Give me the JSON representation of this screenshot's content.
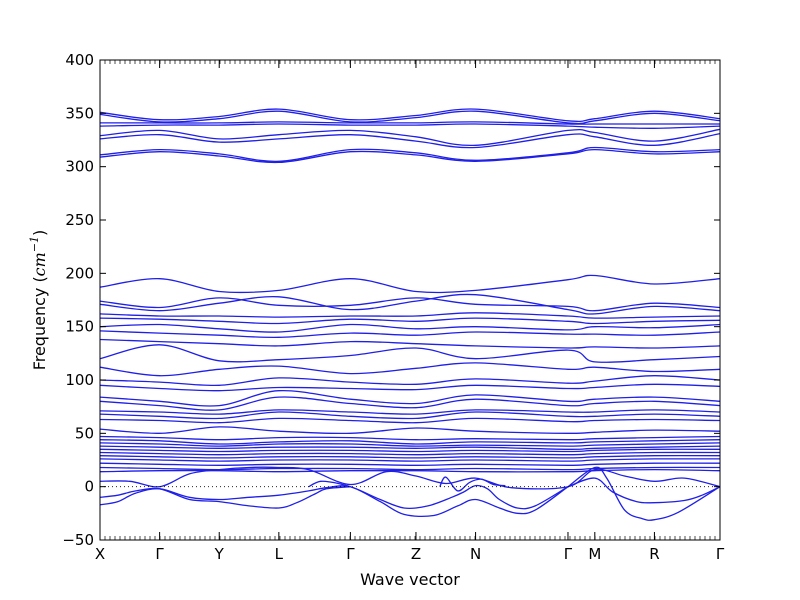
{
  "chart_data": {
    "type": "line",
    "title": "",
    "xlabel": "Wave vector",
    "ylabel": {
      "prefix": "Frequency (",
      "var": "cm",
      "exp": "−1",
      "suffix": ")"
    },
    "ylim": [
      -50,
      400
    ],
    "yticks": [
      -50,
      0,
      50,
      100,
      150,
      200,
      250,
      300,
      350,
      400
    ],
    "ytick_labels": [
      "−50",
      "0",
      "50",
      "100",
      "150",
      "200",
      "250",
      "300",
      "350",
      "400"
    ],
    "xlim": [
      0,
      10.4
    ],
    "high_symmetry_points": [
      {
        "label": "X",
        "x": 0
      },
      {
        "label": "Γ",
        "x": 1
      },
      {
        "label": "Y",
        "x": 2
      },
      {
        "label": "L",
        "x": 3
      },
      {
        "label": "Γ",
        "x": 4.2
      },
      {
        "label": "Z",
        "x": 5.3
      },
      {
        "label": "N",
        "x": 6.3
      },
      {
        "label": "Γ",
        "x": 7.85
      },
      {
        "label": "M",
        "x": 8.3
      },
      {
        "label": "R",
        "x": 9.3
      },
      {
        "label": "Γ",
        "x": 10.4
      }
    ],
    "zero_line": true,
    "line_color": "#1f1fe8",
    "series": [
      {
        "x": [
          0,
          1,
          2,
          3,
          4.2,
          5.3,
          6.3,
          7.85,
          8.3,
          9.3,
          10.4
        ],
        "y": [
          351,
          344,
          347,
          354,
          344,
          348,
          354,
          343,
          345,
          352,
          345
        ]
      },
      {
        "x": [
          0,
          1,
          2,
          3,
          4.2,
          5.3,
          6.3,
          7.85,
          8.3,
          9.3,
          10.4
        ],
        "y": [
          349,
          342,
          345,
          352,
          342,
          346,
          352,
          341,
          343,
          350,
          343
        ]
      },
      {
        "x": [
          0,
          1,
          2,
          3,
          4.2,
          5.3,
          6.3,
          7.85,
          8.3,
          9.3,
          10.4
        ],
        "y": [
          341,
          341,
          341,
          342,
          341,
          341,
          342,
          340,
          340,
          340,
          340
        ]
      },
      {
        "x": [
          0,
          1,
          2,
          3,
          4.2,
          5.3,
          6.3,
          7.85,
          8.3,
          9.3,
          10.4
        ],
        "y": [
          338,
          339,
          339,
          340,
          339,
          339,
          340,
          338,
          337,
          336,
          338
        ]
      },
      {
        "x": [
          0,
          1,
          2,
          3,
          4.2,
          5.3,
          6.3,
          7.85,
          8.3,
          9.3,
          10.4
        ],
        "y": [
          329,
          334,
          326,
          330,
          334,
          328,
          320,
          334,
          332,
          324,
          335
        ]
      },
      {
        "x": [
          0,
          1,
          2,
          3,
          4.2,
          5.3,
          6.3,
          7.85,
          8.3,
          9.3,
          10.4
        ],
        "y": [
          326,
          330,
          323,
          326,
          330,
          324,
          318,
          330,
          328,
          320,
          331
        ]
      },
      {
        "x": [
          0,
          1,
          2,
          3,
          4.2,
          5.3,
          6.3,
          7.85,
          8.3,
          9.3,
          10.4
        ],
        "y": [
          311,
          316,
          312,
          305,
          316,
          313,
          306,
          313,
          318,
          314,
          316
        ]
      },
      {
        "x": [
          0,
          1,
          2,
          3,
          4.2,
          5.3,
          6.3,
          7.85,
          8.3,
          9.3,
          10.4
        ],
        "y": [
          309,
          314,
          310,
          304,
          314,
          311,
          305,
          312,
          316,
          312,
          314
        ]
      },
      {
        "x": [
          0,
          1,
          2,
          3,
          4.2,
          5.3,
          6.3,
          7.85,
          8.3,
          9.3,
          10.4
        ],
        "y": [
          187,
          195,
          183,
          184,
          195,
          183,
          184,
          194,
          198,
          190,
          195
        ]
      },
      {
        "x": [
          0,
          1,
          2,
          3,
          4.2,
          5.3,
          6.3,
          7.85,
          8.3,
          9.3,
          10.4
        ],
        "y": [
          174,
          168,
          177,
          170,
          170,
          177,
          171,
          169,
          165,
          172,
          168
        ]
      },
      {
        "x": [
          0,
          1,
          2,
          3,
          4.2,
          5.3,
          6.3,
          7.85,
          8.3,
          9.3,
          10.4
        ],
        "y": [
          171,
          165,
          172,
          178,
          166,
          174,
          180,
          166,
          162,
          169,
          165
        ]
      },
      {
        "x": [
          0,
          1,
          2,
          3,
          4.2,
          5.3,
          6.3,
          7.85,
          8.3,
          9.3,
          10.4
        ],
        "y": [
          162,
          160,
          160,
          159,
          160,
          160,
          163,
          160,
          158,
          159,
          160
        ]
      },
      {
        "x": [
          0,
          1,
          2,
          3,
          4.2,
          5.3,
          6.3,
          7.85,
          8.3,
          9.3,
          10.4
        ],
        "y": [
          158,
          157,
          155,
          153,
          157,
          155,
          158,
          155,
          153,
          155,
          156
        ]
      },
      {
        "x": [
          0,
          1,
          2,
          3,
          4.2,
          5.3,
          6.3,
          7.85,
          8.3,
          9.3,
          10.4
        ],
        "y": [
          150,
          152,
          148,
          145,
          152,
          148,
          150,
          147,
          150,
          149,
          152
        ]
      },
      {
        "x": [
          0,
          1,
          2,
          3,
          4.2,
          5.3,
          6.3,
          7.85,
          8.3,
          9.3,
          10.4
        ],
        "y": [
          146,
          144,
          142,
          140,
          144,
          142,
          145,
          143,
          143,
          142,
          145
        ]
      },
      {
        "x": [
          0,
          1,
          2,
          3,
          4.2,
          5.3,
          6.3,
          7.85,
          8.3,
          9.3,
          10.4
        ],
        "y": [
          138,
          136,
          134,
          132,
          136,
          134,
          132,
          130,
          131,
          130,
          132
        ]
      },
      {
        "x": [
          0,
          1,
          2,
          3,
          4.2,
          5.3,
          6.3,
          7.85,
          8.3,
          9.3,
          10.4
        ],
        "y": [
          120,
          133,
          118,
          119,
          123,
          130,
          120,
          128,
          117,
          119,
          122
        ]
      },
      {
        "x": [
          0,
          1,
          2,
          3,
          4.2,
          5.3,
          6.3,
          7.85,
          8.3,
          9.3,
          10.4
        ],
        "y": [
          112,
          104,
          110,
          113,
          106,
          111,
          116,
          110,
          112,
          108,
          110
        ]
      },
      {
        "x": [
          0,
          1,
          2,
          3,
          4.2,
          5.3,
          6.3,
          7.85,
          8.3,
          9.3,
          10.4
        ],
        "y": [
          100,
          98,
          95,
          102,
          98,
          96,
          101,
          97,
          99,
          104,
          100
        ]
      },
      {
        "x": [
          0,
          1,
          2,
          3,
          4.2,
          5.3,
          6.3,
          7.85,
          8.3,
          9.3,
          10.4
        ],
        "y": [
          95,
          92,
          90,
          93,
          92,
          91,
          95,
          92,
          93,
          96,
          94
        ]
      },
      {
        "x": [
          0,
          1,
          2,
          3,
          4.2,
          5.3,
          6.3,
          7.85,
          8.3,
          9.3,
          10.4
        ],
        "y": [
          84,
          80,
          76,
          90,
          82,
          78,
          86,
          80,
          82,
          84,
          80
        ]
      },
      {
        "x": [
          0,
          1,
          2,
          3,
          4.2,
          5.3,
          6.3,
          7.85,
          8.3,
          9.3,
          10.4
        ],
        "y": [
          80,
          76,
          72,
          84,
          78,
          74,
          82,
          76,
          78,
          80,
          76
        ]
      },
      {
        "x": [
          0,
          1,
          2,
          3,
          4.2,
          5.3,
          6.3,
          7.85,
          8.3,
          9.3,
          10.4
        ],
        "y": [
          71,
          70,
          68,
          72,
          70,
          68,
          72,
          70,
          70,
          72,
          70
        ]
      },
      {
        "x": [
          0,
          1,
          2,
          3,
          4.2,
          5.3,
          6.3,
          7.85,
          8.3,
          9.3,
          10.4
        ],
        "y": [
          68,
          66,
          64,
          70,
          66,
          64,
          70,
          66,
          66,
          68,
          66
        ]
      },
      {
        "x": [
          0,
          1,
          2,
          3,
          4.2,
          5.3,
          6.3,
          7.85,
          8.3,
          9.3,
          10.4
        ],
        "y": [
          63,
          62,
          60,
          64,
          62,
          60,
          64,
          61,
          62,
          63,
          62
        ]
      },
      {
        "x": [
          0,
          1,
          2,
          3,
          4.2,
          5.3,
          6.3,
          7.85,
          8.3,
          9.3,
          10.4
        ],
        "y": [
          54,
          50,
          56,
          52,
          50,
          55,
          52,
          50,
          51,
          53,
          52
        ]
      },
      {
        "x": [
          0,
          1,
          2,
          3,
          4.2,
          5.3,
          6.3,
          7.85,
          8.3,
          9.3,
          10.4
        ],
        "y": [
          47,
          46,
          44,
          46,
          46,
          44,
          45,
          44,
          45,
          46,
          47
        ]
      },
      {
        "x": [
          0,
          1,
          2,
          3,
          4.2,
          5.3,
          6.3,
          7.85,
          8.3,
          9.3,
          10.4
        ],
        "y": [
          44,
          43,
          40,
          42,
          43,
          40,
          42,
          41,
          42,
          43,
          44
        ]
      },
      {
        "x": [
          0,
          1,
          2,
          3,
          4.2,
          5.3,
          6.3,
          7.85,
          8.3,
          9.3,
          10.4
        ],
        "y": [
          41,
          40,
          38,
          40,
          40,
          38,
          39,
          38,
          39,
          40,
          41
        ]
      },
      {
        "x": [
          0,
          1,
          2,
          3,
          4.2,
          5.3,
          6.3,
          7.85,
          8.3,
          9.3,
          10.4
        ],
        "y": [
          38,
          37,
          36,
          37,
          37,
          36,
          37,
          35,
          36,
          37,
          38
        ]
      },
      {
        "x": [
          0,
          1,
          2,
          3,
          4.2,
          5.3,
          6.3,
          7.85,
          8.3,
          9.3,
          10.4
        ],
        "y": [
          35,
          34,
          33,
          34,
          34,
          33,
          34,
          33,
          34,
          35,
          35
        ]
      },
      {
        "x": [
          0,
          1,
          2,
          3,
          4.2,
          5.3,
          6.3,
          7.85,
          8.3,
          9.3,
          10.4
        ],
        "y": [
          32,
          31,
          30,
          31,
          31,
          30,
          31,
          30,
          31,
          32,
          32
        ]
      },
      {
        "x": [
          0,
          1,
          2,
          3,
          4.2,
          5.3,
          6.3,
          7.85,
          8.3,
          9.3,
          10.4
        ],
        "y": [
          29,
          28,
          27,
          28,
          28,
          27,
          28,
          27,
          28,
          29,
          29
        ]
      },
      {
        "x": [
          0,
          1,
          2,
          3,
          4.2,
          5.3,
          6.3,
          7.85,
          8.3,
          9.3,
          10.4
        ],
        "y": [
          26,
          25,
          24,
          25,
          25,
          24,
          25,
          24,
          25,
          26,
          26
        ]
      },
      {
        "x": [
          0,
          1,
          2,
          3,
          4.2,
          5.3,
          6.3,
          7.85,
          8.3,
          9.3,
          10.4
        ],
        "y": [
          22,
          21,
          20,
          21,
          21,
          20,
          21,
          20,
          21,
          22,
          22
        ]
      },
      {
        "x": [
          0,
          1,
          2,
          3,
          4.2,
          5.3,
          6.3,
          7.85,
          8.3,
          9.3,
          10.4
        ],
        "y": [
          18,
          17,
          16,
          17,
          17,
          16,
          17,
          16,
          17,
          18,
          18
        ]
      },
      {
        "x": [
          0,
          1,
          2,
          3,
          4.2,
          5.3,
          6.3,
          7.85,
          8.3,
          9.3,
          10.4
        ],
        "y": [
          14,
          15,
          15,
          14,
          15,
          15,
          14,
          14,
          15,
          16,
          15
        ]
      },
      {
        "x": [
          0,
          0.5,
          1,
          1.5,
          2,
          2.5,
          3,
          3.5,
          4.2,
          4.8,
          5.3,
          5.8,
          6.3,
          6.9,
          7.85,
          8.3,
          8.8,
          9.3,
          9.8,
          10.4
        ],
        "y": [
          5,
          5,
          0,
          12,
          16,
          18,
          18,
          16,
          2,
          14,
          10,
          3,
          8,
          -1,
          0,
          16,
          10,
          5,
          8,
          0
        ]
      },
      {
        "x": [
          0,
          0.3,
          0.6,
          1,
          1.5,
          2,
          2.5,
          3,
          3.5,
          3.8,
          4.2,
          4.7,
          5.1,
          5.6,
          6,
          6.3,
          6.7,
          7,
          7.3,
          7.85
        ],
        "y": [
          -17,
          -14,
          -6,
          -2,
          -10,
          -12,
          -10,
          -8,
          -4,
          -1,
          0,
          -14,
          -26,
          -27,
          -18,
          -12,
          -20,
          -25,
          -22,
          0
        ]
      },
      {
        "x": [
          0,
          0.3,
          0.6,
          1,
          1.5,
          2,
          2.5,
          3,
          3.3,
          3.6,
          3.8,
          4.2
        ],
        "y": [
          -10,
          -8,
          -4,
          -2,
          -12,
          -14,
          -18,
          -20,
          -15,
          -7,
          -2,
          0
        ]
      },
      {
        "x": [
          3.5,
          3.7,
          4,
          4.3,
          4.7,
          5.1,
          5.5,
          5.9,
          6.1,
          6.3,
          6.5,
          6.7,
          7,
          7.3,
          7.85
        ],
        "y": [
          0,
          5,
          3,
          -2,
          -12,
          -20,
          -18,
          -10,
          -5,
          1,
          -2,
          -12,
          -20,
          -18,
          0
        ]
      },
      {
        "x": [
          5.7,
          5.8,
          6,
          6.2,
          6.4,
          6.6,
          6.8
        ],
        "y": [
          0,
          9,
          -4,
          4,
          7,
          2,
          1
        ]
      },
      {
        "x": [
          7.85,
          8.3,
          8.5,
          8.8,
          9.1,
          9.3,
          9.7,
          10.4
        ],
        "y": [
          0,
          18,
          8,
          -22,
          -30,
          -31,
          -24,
          0
        ]
      },
      {
        "x": [
          7.85,
          8.3,
          8.6,
          9,
          9.3,
          9.8,
          10.1,
          10.4
        ],
        "y": [
          0,
          8,
          -5,
          -14,
          -15,
          -13,
          -8,
          0
        ]
      }
    ]
  }
}
